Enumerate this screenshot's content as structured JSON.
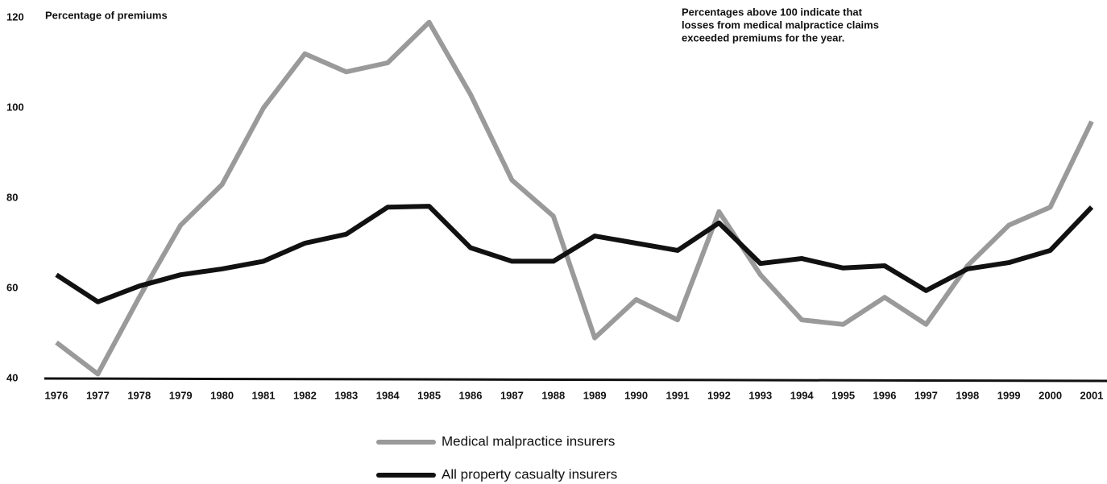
{
  "chart_data": {
    "type": "line",
    "y_label": "Percentage of premiums",
    "annotation": [
      "Percentages above 100 indicate that",
      "losses from medical malpractice claims",
      "exceeded premiums for the year."
    ],
    "categories": [
      "1976",
      "1977",
      "1978",
      "1979",
      "1980",
      "1981",
      "1982",
      "1983",
      "1984",
      "1985",
      "1986",
      "1987",
      "1988",
      "1989",
      "1990",
      "1991",
      "1992",
      "1993",
      "1994",
      "1995",
      "1996",
      "1997",
      "1998",
      "1999",
      "2000",
      "2001"
    ],
    "series": [
      {
        "name": "Medical malpractice insurers",
        "color": "#9a9a9a",
        "values": [
          48,
          41,
          58,
          74,
          83,
          100,
          112,
          108,
          110,
          119,
          103,
          84,
          76,
          49,
          57.5,
          53,
          77,
          63,
          53,
          52,
          58,
          52,
          65,
          74,
          78,
          97
        ]
      },
      {
        "name": "All property casualty insurers",
        "color": "#111111",
        "values": [
          63,
          57,
          60.5,
          63,
          64.3,
          66,
          70,
          72,
          78,
          78.2,
          69,
          66,
          66,
          71.6,
          70,
          68.4,
          74.5,
          65.5,
          66.6,
          64.5,
          65,
          59.5,
          64.3,
          65.7,
          68.4,
          78
        ]
      }
    ],
    "ylim": [
      40,
      120
    ],
    "yticks": [
      40,
      60,
      80,
      100,
      120
    ],
    "grid": false
  }
}
